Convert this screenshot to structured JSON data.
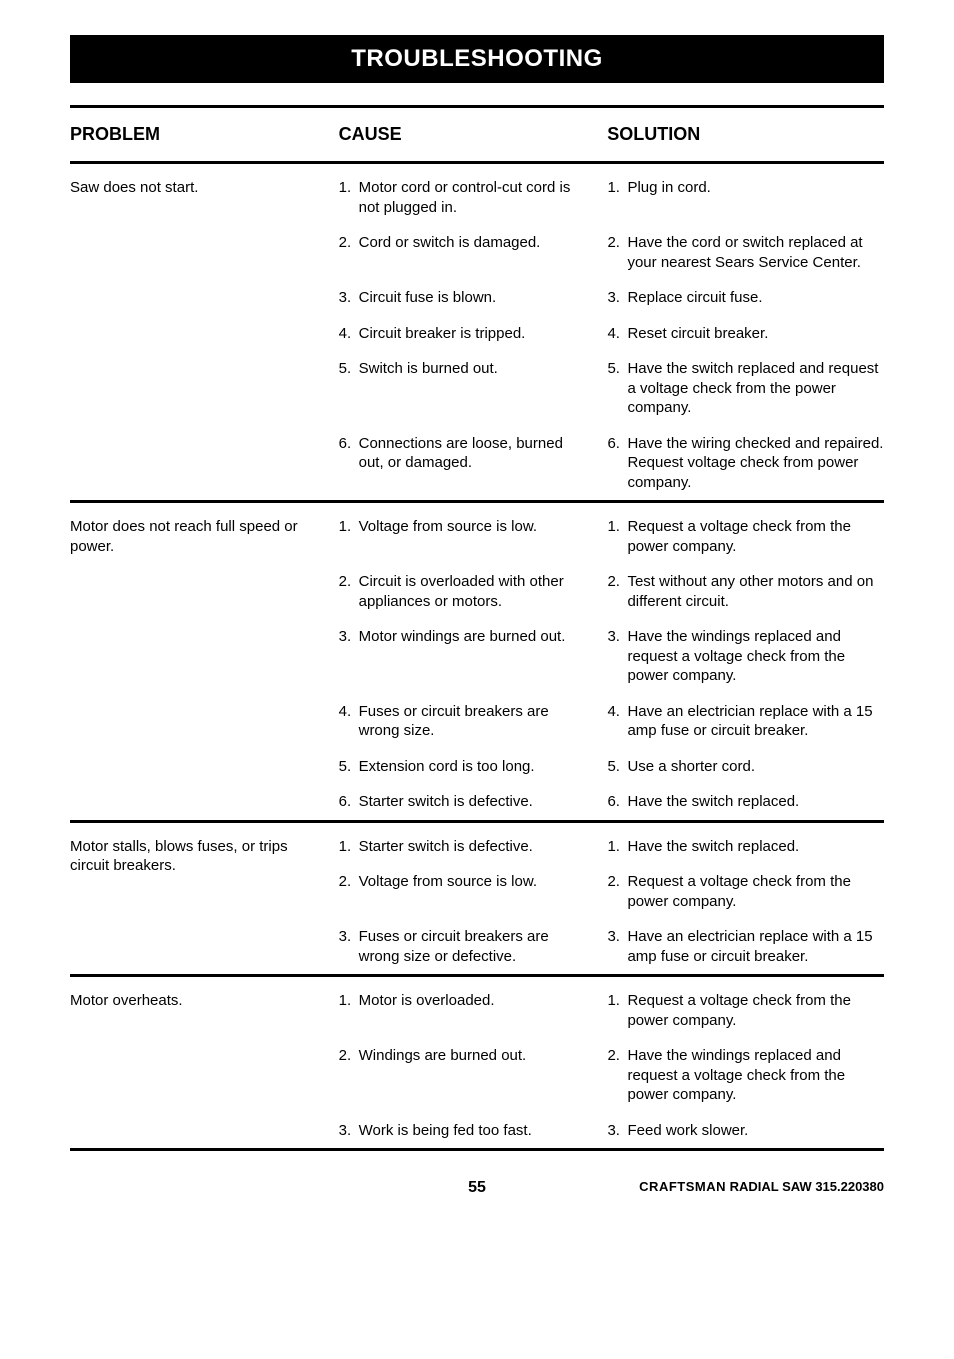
{
  "banner": "TROUBLESHOOTING",
  "headers": {
    "problem": "PROBLEM",
    "cause": "CAUSE",
    "solution": "SOLUTION"
  },
  "sections": [
    {
      "problem": "Saw does not start.",
      "rows": [
        {
          "n": "1.",
          "cause": "Motor cord or control-cut cord is not plugged in.",
          "solution": "Plug in cord."
        },
        {
          "n": "2.",
          "cause": "Cord or switch is damaged.",
          "solution": "Have the cord or switch replaced at your nearest Sears Service Center."
        },
        {
          "n": "3.",
          "cause": "Circuit fuse is blown.",
          "solution": "Replace circuit fuse."
        },
        {
          "n": "4.",
          "cause": "Circuit breaker is tripped.",
          "solution": "Reset circuit breaker."
        },
        {
          "n": "5.",
          "cause": "Switch is burned out.",
          "solution": "Have the switch replaced and request a voltage check from the power company."
        },
        {
          "n": "6.",
          "cause": "Connections are loose, burned out, or damaged.",
          "solution": "Have the wiring checked and repaired. Request voltage check from power company."
        }
      ]
    },
    {
      "problem": "Motor does not reach full speed or power.",
      "rows": [
        {
          "n": "1.",
          "cause": "Voltage from source is low.",
          "solution": "Request a voltage check from the power company."
        },
        {
          "n": "2.",
          "cause": "Circuit is overloaded with other appliances or motors.",
          "solution": "Test without any other motors and on different circuit."
        },
        {
          "n": "3.",
          "cause": "Motor windings are burned out.",
          "solution": "Have the windings replaced and request a voltage check from the power company."
        },
        {
          "n": "4.",
          "cause": "Fuses or circuit breakers are wrong size.",
          "solution": "Have an electrician replace with a 15 amp fuse or circuit breaker."
        },
        {
          "n": "5.",
          "cause": "Extension cord is too long.",
          "solution": "Use a shorter cord."
        },
        {
          "n": "6.",
          "cause": "Starter switch is defective.",
          "solution": "Have the switch replaced."
        }
      ]
    },
    {
      "problem": "Motor stalls, blows fuses, or trips circuit breakers.",
      "rows": [
        {
          "n": "1.",
          "cause": "Starter switch is defective.",
          "solution": "Have the switch replaced."
        },
        {
          "n": "2.",
          "cause": "Voltage from source is low.",
          "solution": "Request a voltage check from the power company."
        },
        {
          "n": "3.",
          "cause": "Fuses or circuit breakers are wrong size or defective.",
          "solution": "Have an electrician replace with a 15 amp fuse or circuit breaker."
        }
      ]
    },
    {
      "problem": "Motor overheats.",
      "rows": [
        {
          "n": "1.",
          "cause": "Motor is overloaded.",
          "solution": "Request a voltage check from the power company."
        },
        {
          "n": "2.",
          "cause": "Windings are burned out.",
          "solution": "Have the windings replaced and request a voltage check from the power company."
        },
        {
          "n": "3.",
          "cause": "Work is being fed too fast.",
          "solution": "Feed work slower."
        }
      ]
    }
  ],
  "footer": {
    "page": "55",
    "brand": "CRAFTSMAN",
    "product": " RADIAL SAW 315.220380"
  }
}
